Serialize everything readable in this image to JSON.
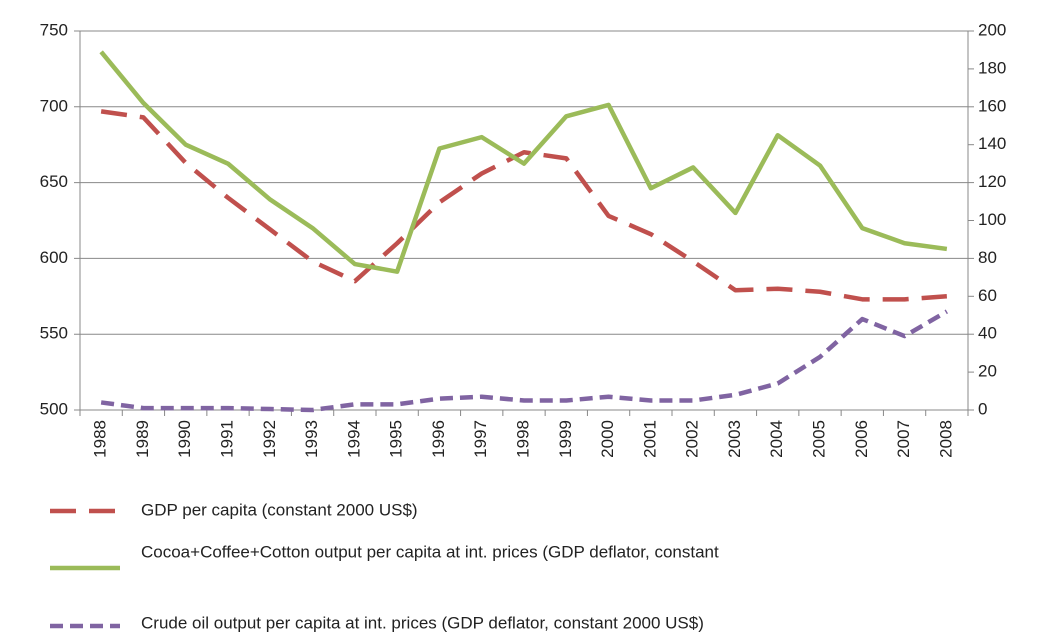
{
  "chart_data": {
    "type": "line",
    "categories": [
      "1988",
      "1989",
      "1990",
      "1991",
      "1992",
      "1993",
      "1994",
      "1995",
      "1996",
      "1997",
      "1998",
      "1999",
      "2000",
      "2001",
      "2002",
      "2003",
      "2004",
      "2005",
      "2006",
      "2007",
      "2008"
    ],
    "ylim": [
      500,
      750
    ],
    "yticks": [
      500,
      550,
      600,
      650,
      700,
      750
    ],
    "y2lim": [
      0,
      200
    ],
    "y2ticks": [
      0,
      20,
      40,
      60,
      80,
      100,
      120,
      140,
      160,
      180,
      200
    ],
    "grid": true,
    "series": [
      {
        "name": "GDP per capita (constant 2000 US$)",
        "color": "#c0504d",
        "values": [
          697,
          693,
          663,
          640,
          619,
          598,
          585,
          610,
          637,
          656,
          670,
          666,
          628,
          616,
          598,
          579,
          580,
          578,
          573,
          573,
          575
        ]
      },
      {
        "name": "Cocoa+Coffee+Cotton output per capita at int. prices (GDP deflator, constant",
        "color": "#9bbb59",
        "axis": "y2",
        "values": [
          189,
          162,
          140,
          130,
          111,
          96,
          77,
          73,
          138,
          144,
          130,
          155,
          161,
          117,
          128,
          104,
          145,
          129,
          96,
          88,
          85
        ]
      },
      {
        "name": "Crude oil output per capita at int. prices (GDP deflator, constant 2000 US$)",
        "color": "#8064a2",
        "axis": "y2",
        "values": [
          4,
          1,
          1,
          1,
          0.5,
          0,
          3,
          3,
          6,
          7,
          5,
          5,
          7,
          5,
          5,
          8,
          14,
          28,
          48,
          39,
          52
        ]
      }
    ]
  }
}
